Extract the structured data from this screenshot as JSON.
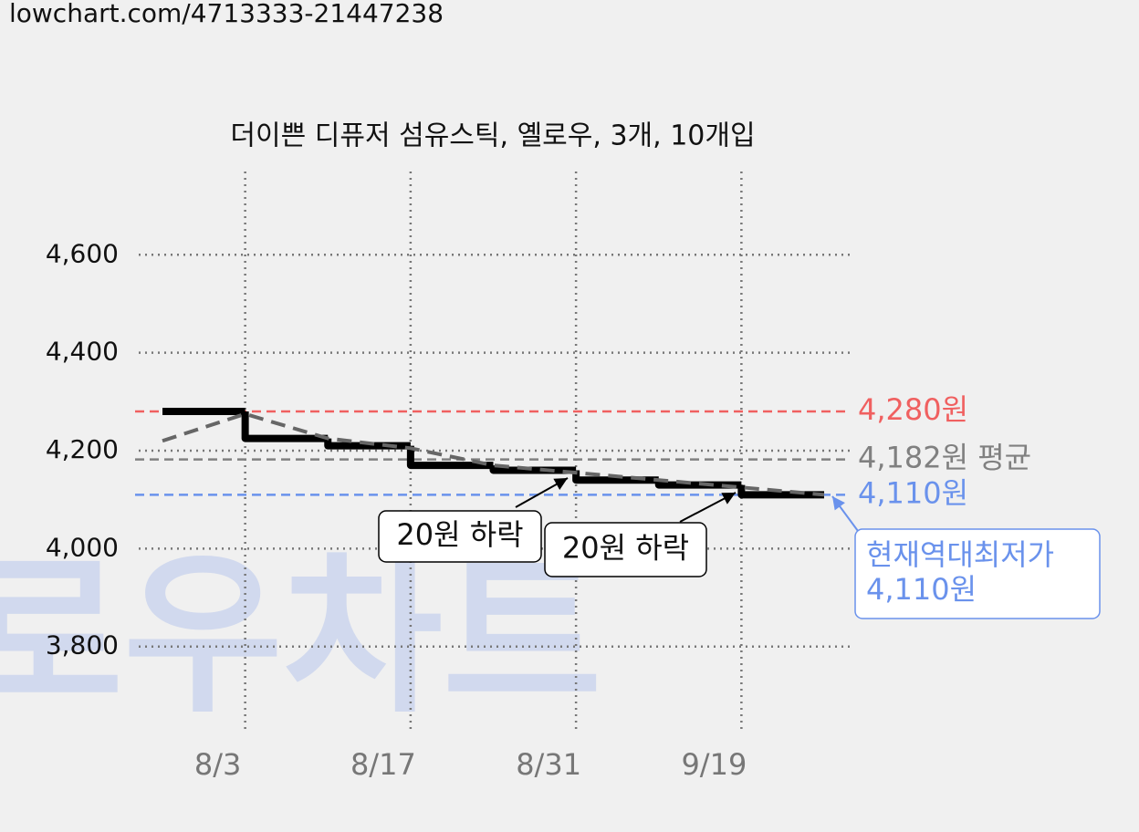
{
  "header": {
    "url": "lowchart.com/4713333-21447238"
  },
  "watermark": "로우차트",
  "chart_data": {
    "type": "line",
    "title": "더이쁜 디퓨저 섬유스틱, 옐로우, 3개, 10개입",
    "categories": [
      null,
      "8/3",
      null,
      "8/17",
      null,
      "8/31",
      null,
      "9/19",
      null
    ],
    "series": [
      {
        "color": "#000000",
        "step": true,
        "values": [
          4280,
          4225,
          4210,
          4170,
          4160,
          4140,
          4130,
          4110,
          4110
        ]
      },
      {
        "color": "#666666",
        "dashed": true,
        "values": [
          4220,
          4275,
          4225,
          4205,
          4170,
          4155,
          4140,
          4125,
          4110
        ]
      }
    ],
    "ylim": [
      3630,
      4770
    ],
    "yticks": [
      {
        "value": 3800,
        "label": "3,800"
      },
      {
        "value": 4000,
        "label": "4,000"
      },
      {
        "value": 4200,
        "label": "4,200"
      },
      {
        "value": 4400,
        "label": "4,400"
      },
      {
        "value": 4600,
        "label": "4,600"
      }
    ],
    "grid": true,
    "reference_lines": [
      {
        "value": 4280,
        "label": "4,280원",
        "color": "#f06060"
      },
      {
        "value": 4182,
        "label": "4,182원 평균",
        "color": "#808080"
      },
      {
        "value": 4110,
        "label": "4,110원",
        "color": "#6a92ec"
      }
    ],
    "annotations": [
      {
        "lines": [
          "20원 하락"
        ],
        "color": "#000000"
      },
      {
        "lines": [
          "20원 하락"
        ],
        "color": "#000000"
      },
      {
        "lines": [
          "현재역대최저가",
          "4,110원"
        ],
        "color": "#6a92ec"
      }
    ]
  }
}
